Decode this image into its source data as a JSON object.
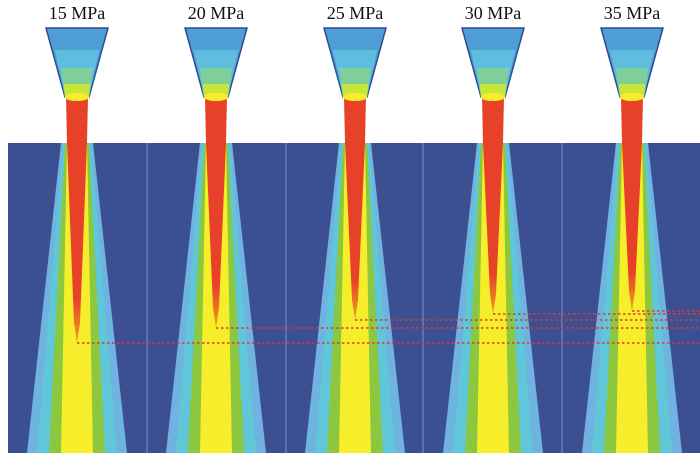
{
  "panels": [
    {
      "label": "15 MPa",
      "core_length_rank": 5
    },
    {
      "label": "20 MPa",
      "core_length_rank": 4
    },
    {
      "label": "25 MPa",
      "core_length_rank": 3
    },
    {
      "label": "30 MPa",
      "core_length_rank": 2
    },
    {
      "label": "35 MPa",
      "core_length_rank": 1
    }
  ],
  "colors": {
    "background": "#3d4f93",
    "nozzle_outer": "#4f9ed6",
    "nozzle_inner": "#5fbde0",
    "jet_core": "#e8412a",
    "jet_yellow": "#f6ee2a",
    "jet_green": "#8dc63f",
    "jet_cyan": "#5fc7d8",
    "jet_lightblue": "#6fb3e0",
    "divider": "#7f8fc6",
    "reference_line": "#e03a2a"
  }
}
